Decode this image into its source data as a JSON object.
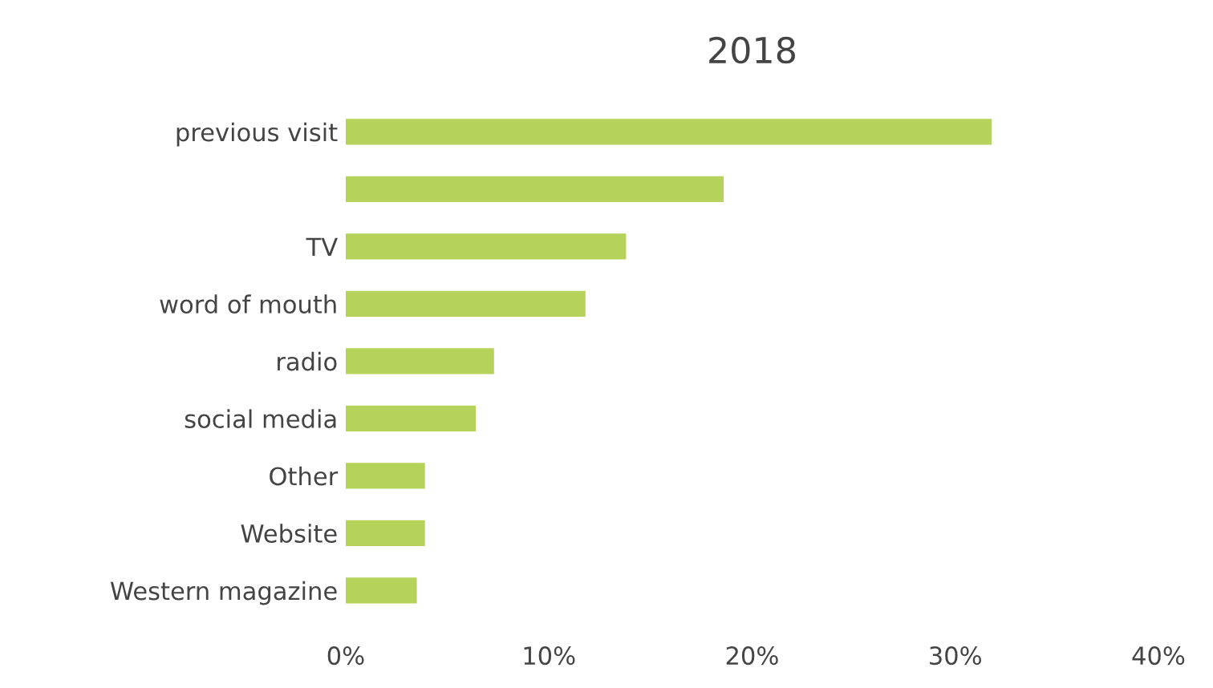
{
  "chart_data": {
    "type": "bar",
    "title": "2018",
    "orientation": "horizontal",
    "categories": [
      "previous visit",
      null,
      "TV",
      "word of mouth",
      "radio",
      "social media",
      "Other",
      "Website",
      "Western magazine"
    ],
    "values": [
      31.8,
      18.6,
      13.8,
      11.8,
      7.3,
      6.4,
      3.9,
      3.9,
      3.5
    ],
    "color": "#b5d35a",
    "xlim": [
      0,
      40
    ],
    "xticks": [
      {
        "value": 0,
        "label": "0%"
      },
      {
        "value": 10,
        "label": "10%"
      },
      {
        "value": 20,
        "label": "20%"
      },
      {
        "value": 30,
        "label": "30%"
      },
      {
        "value": 40,
        "label": "40%"
      }
    ],
    "grid": false
  }
}
